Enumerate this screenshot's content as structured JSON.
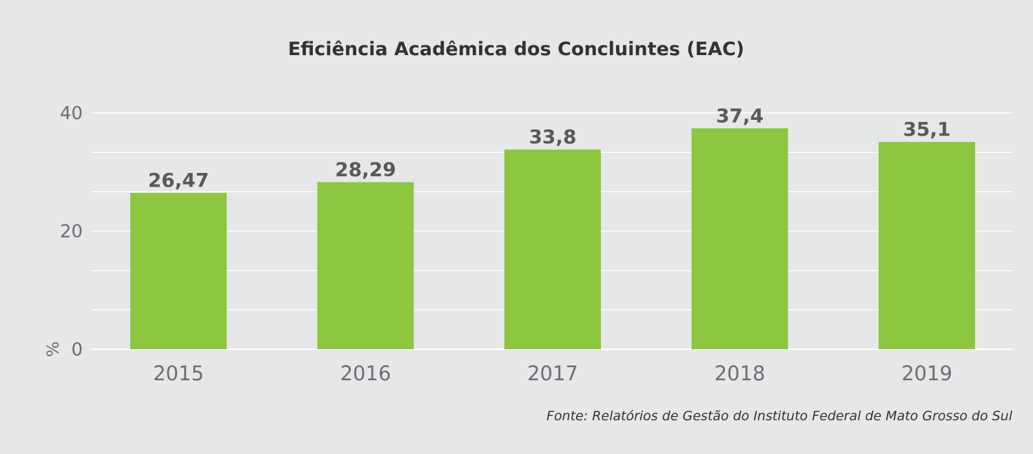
{
  "chart_data": {
    "type": "bar",
    "title": "Eficiência Acadêmica dos Concluintes (EAC)",
    "xlabel": "",
    "ylabel": "%",
    "categories": [
      "2015",
      "2016",
      "2017",
      "2018",
      "2019"
    ],
    "values": [
      26.47,
      28.29,
      33.8,
      37.4,
      35.1
    ],
    "value_labels": [
      "26,47",
      "28,29",
      "33,8",
      "37,4",
      "35,1"
    ],
    "ylim": [
      0,
      40
    ],
    "yticks": [
      0,
      20,
      40
    ],
    "ytick_labels": [
      "0",
      "20",
      "40"
    ],
    "gridlines": [
      0,
      6.67,
      13.33,
      20,
      26.67,
      33.33,
      40
    ],
    "grid": true,
    "legend": "none",
    "bar_color": "#8dc63f",
    "source": "Fonte: Relatórios de Gestão do Instituto Federal de Mato Grosso do Sul"
  }
}
